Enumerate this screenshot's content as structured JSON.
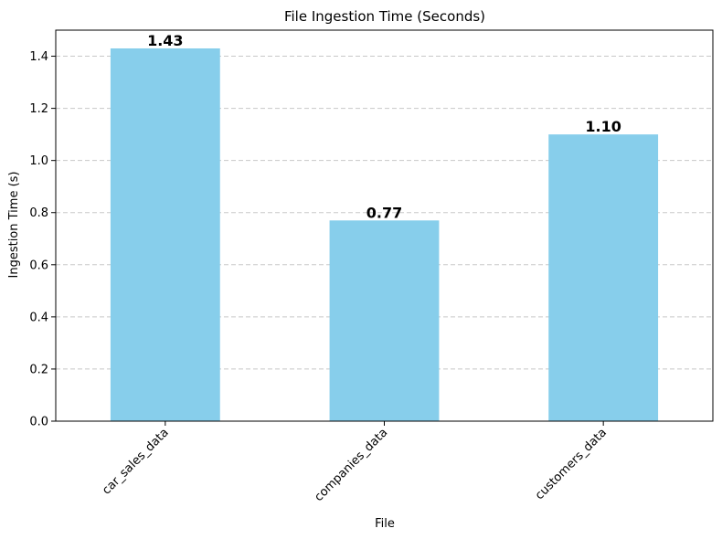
{
  "chart_data": {
    "type": "bar",
    "title": "File Ingestion Time (Seconds)",
    "xlabel": "File",
    "ylabel": "Ingestion Time (s)",
    "categories": [
      "car_sales_data",
      "companies_data",
      "customers_data"
    ],
    "values": [
      1.43,
      0.77,
      1.1
    ],
    "value_labels": [
      "1.43",
      "0.77",
      "1.10"
    ],
    "ylim": [
      0,
      1.5
    ],
    "yticks": [
      0.0,
      0.2,
      0.4,
      0.6,
      0.8,
      1.0,
      1.2,
      1.4
    ],
    "ytick_labels": [
      "0.0",
      "0.2",
      "0.4",
      "0.6",
      "0.8",
      "1.0",
      "1.2",
      "1.4"
    ],
    "bar_color": "#87ceeb",
    "grid": "y-dashed",
    "xtick_rotation_deg": 45,
    "legend": "none"
  }
}
